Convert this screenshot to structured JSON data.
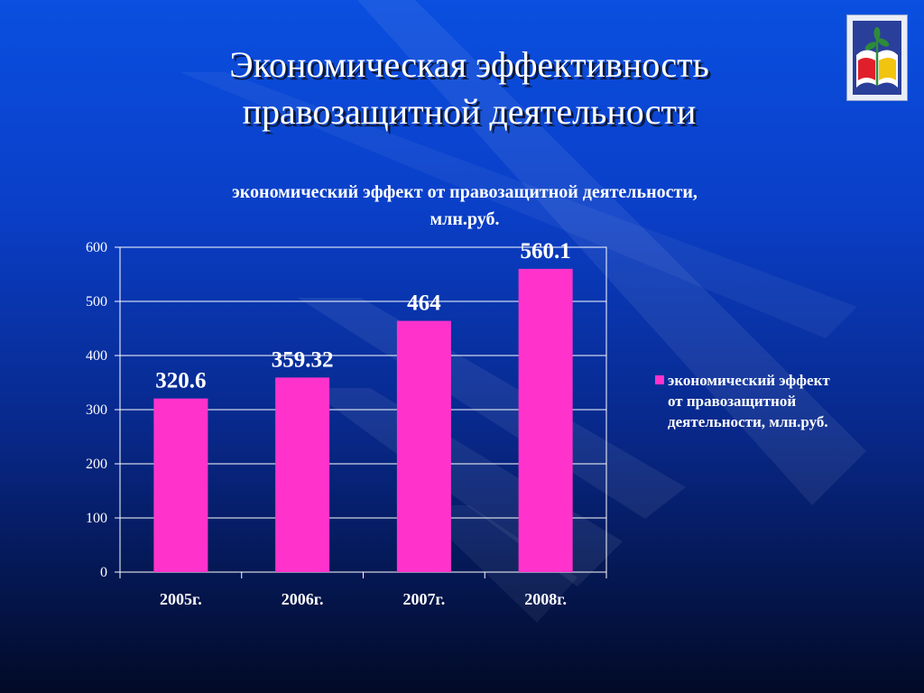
{
  "slide": {
    "title_line1": "Экономическая эффективность",
    "title_line2": "правозащитной деятельности"
  },
  "logo": {
    "icon": "union-emblem-icon"
  },
  "colors": {
    "bar": "#ff33cc",
    "axis": "#ffffff",
    "text": "#ffffff"
  },
  "chart_data": {
    "type": "bar",
    "title": "экономический эффект от правозащитной деятельности, млн.руб.",
    "title_line1": "экономический эффект от правозащитной деятельности,",
    "title_line2": "млн.руб.",
    "categories": [
      "2005г.",
      "2006г.",
      "2007г.",
      "2008г."
    ],
    "series": [
      {
        "name": "экономический эффект от правозащитной деятельности, млн.руб.",
        "values": [
          320.6,
          359.32,
          464,
          560.1
        ],
        "data_labels": [
          "320.6",
          "359.32",
          "464",
          "560.1"
        ]
      }
    ],
    "ylim": [
      0,
      600
    ],
    "yticks": [
      0,
      100,
      200,
      300,
      400,
      500,
      600
    ],
    "grid": true,
    "legend_position": "right",
    "legend_lines": [
      "экономический эффект",
      "от правозащитной",
      "деятельности, млн.руб."
    ]
  }
}
